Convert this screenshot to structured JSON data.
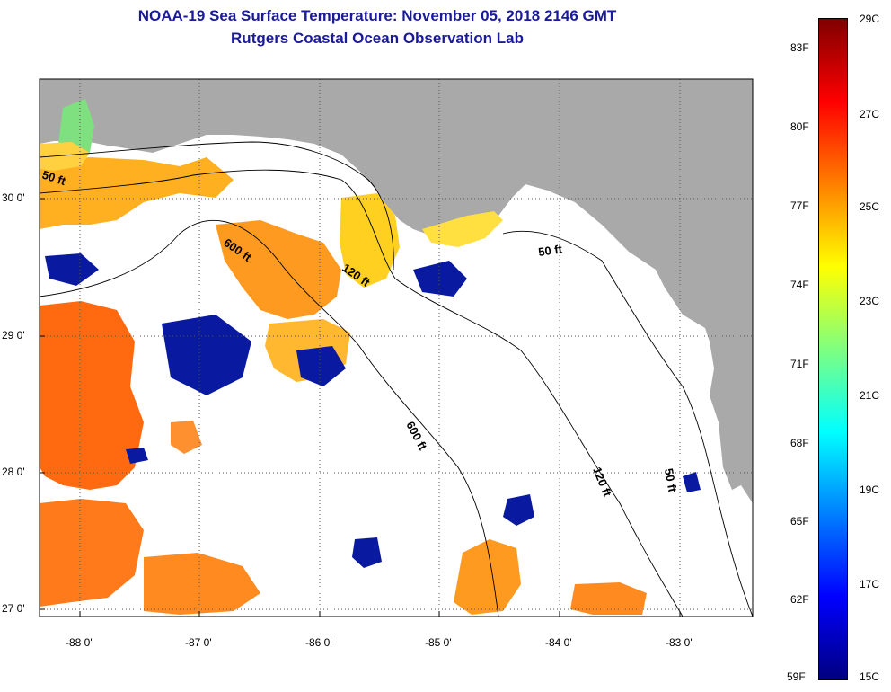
{
  "title": {
    "line1": "NOAA-19 Sea Surface Temperature:  November 05, 2018 2146 GMT",
    "line2": "Rutgers Coastal Ocean Observation Lab"
  },
  "map": {
    "land_color": "#a9a9a9",
    "water_color": "#ffffff",
    "lon_labels": [
      "-88 0'",
      "-87 0'",
      "-86 0'",
      "-85 0'",
      "-84 0'",
      "-83 0'"
    ],
    "lat_labels": [
      "30 0'",
      "29 0'",
      "28 0'",
      "27 0'"
    ],
    "contours": [
      {
        "label": "50 ft"
      },
      {
        "label": "600 ft"
      },
      {
        "label": "120 ft"
      },
      {
        "label": "50 ft"
      },
      {
        "label": "600 ft"
      },
      {
        "label": "120 ft"
      },
      {
        "label": "50 ft"
      }
    ]
  },
  "colorbar": {
    "stops": [
      "#00007f",
      "#0000ff",
      "#007fff",
      "#00ffff",
      "#7fff7f",
      "#ffff00",
      "#ff7f00",
      "#ff0000",
      "#7f0000"
    ],
    "fahrenheit_labels": [
      "83F",
      "80F",
      "77F",
      "74F",
      "71F",
      "68F",
      "65F",
      "62F",
      "59F"
    ],
    "celsius_labels": [
      "29C",
      "27C",
      "25C",
      "23C",
      "21C",
      "19C",
      "17C",
      "15C"
    ]
  }
}
